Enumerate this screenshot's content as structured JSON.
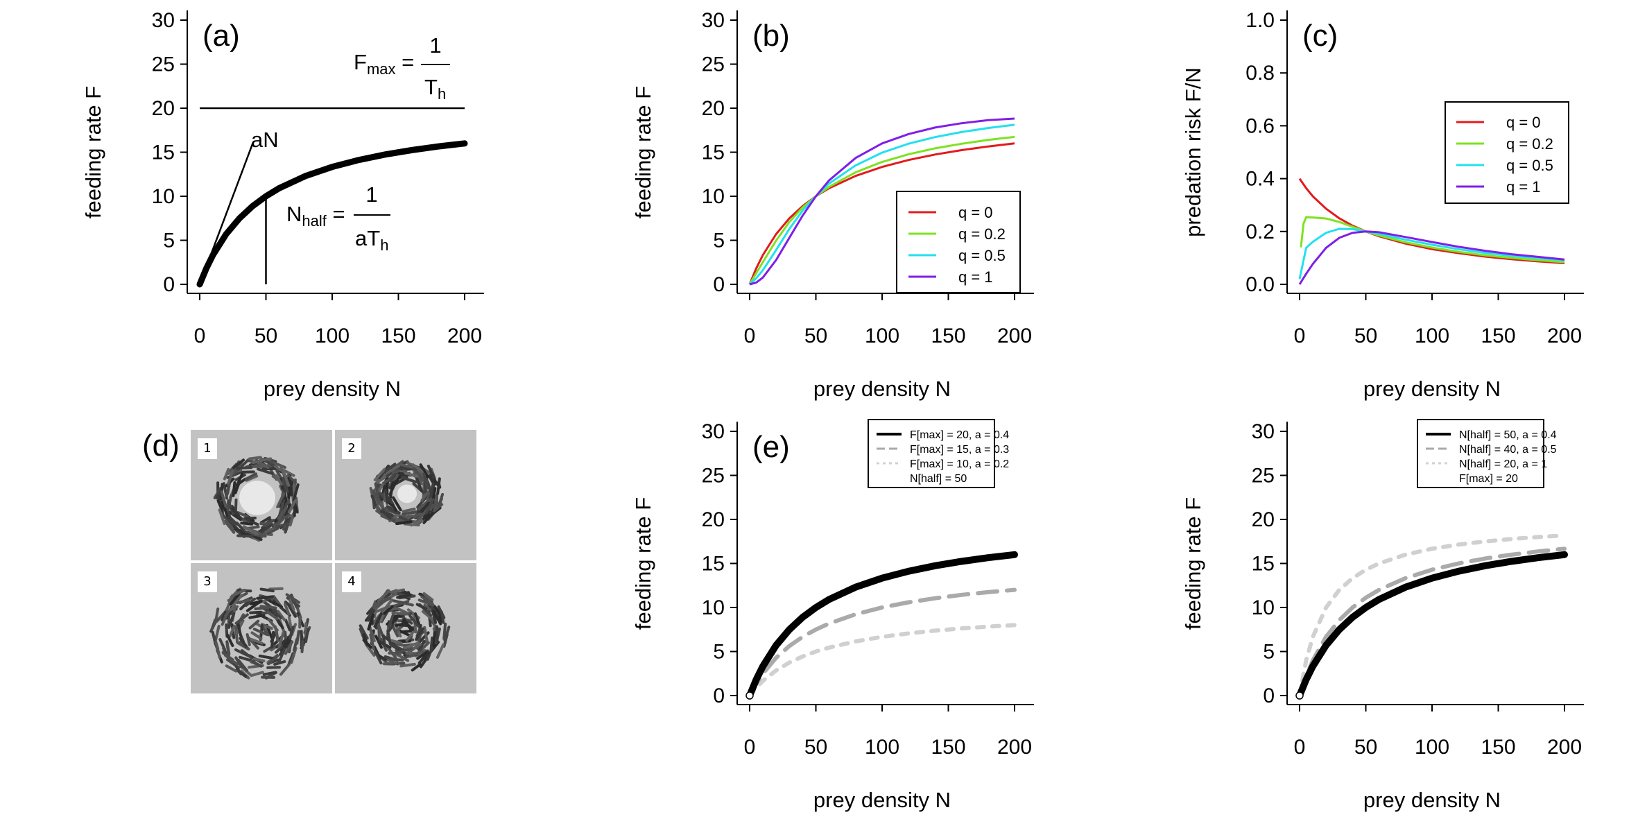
{
  "chart_data": [
    {
      "type": "line",
      "panel_label": "(a)",
      "xlabel": "prey density N",
      "ylabel": "feeding rate F",
      "xlim": [
        0,
        200
      ],
      "ylim": [
        0,
        30
      ],
      "xticks": [
        "0",
        "50",
        "100",
        "150",
        "200"
      ],
      "yticks": [
        "0",
        "5",
        "10",
        "15",
        "20",
        "25",
        "30"
      ],
      "series": [
        {
          "x": [
            0,
            5,
            10,
            20,
            30,
            40,
            50,
            60,
            80,
            100,
            120,
            140,
            160,
            180,
            200
          ],
          "y": [
            0,
            1.82,
            3.33,
            5.71,
            7.5,
            8.89,
            10.0,
            10.91,
            12.31,
            13.33,
            14.12,
            14.74,
            15.24,
            15.65,
            16.0
          ]
        }
      ],
      "annotations": [
        {
          "text": "aN",
          "line_x": [
            0,
            40
          ],
          "line_y": [
            0,
            16
          ]
        },
        {
          "text": "Fmax = 1/Th",
          "line_x": [
            0,
            200
          ],
          "line_y": [
            20,
            20
          ]
        },
        {
          "text": "Nhalf = 1/aTh",
          "line_x": [
            50,
            50
          ],
          "line_y": [
            0,
            10
          ]
        }
      ],
      "labels": {
        "fmax_main": "F",
        "fmax_sub": "max",
        "fmax_num": "1",
        "fmax_den_main": "T",
        "fmax_den_sub": "h",
        "nhalf_main": "N",
        "nhalf_sub": "half",
        "nhalf_num": "1",
        "nhalf_den_main": "aT",
        "nhalf_den_sub": "h",
        "eq": "=",
        "an": "aN"
      }
    },
    {
      "type": "line",
      "panel_label": "(b)",
      "xlabel": "prey density N",
      "ylabel": "feeding rate F",
      "xlim": [
        0,
        200
      ],
      "ylim": [
        0,
        30
      ],
      "xticks": [
        "0",
        "50",
        "100",
        "150",
        "200"
      ],
      "yticks": [
        "0",
        "5",
        "10",
        "15",
        "20",
        "25",
        "30"
      ],
      "x": [
        0,
        5,
        10,
        20,
        30,
        40,
        50,
        60,
        80,
        100,
        120,
        140,
        160,
        180,
        200
      ],
      "series": [
        {
          "name": "q = 0",
          "color": "#e31a1c",
          "y": [
            0,
            1.82,
            3.33,
            5.71,
            7.5,
            8.89,
            10.0,
            10.91,
            12.31,
            13.33,
            14.12,
            14.74,
            15.24,
            15.65,
            16.0
          ]
        },
        {
          "name": "q = 0.2",
          "color": "#7de321",
          "y": [
            0,
            1.27,
            2.53,
            4.98,
            7.08,
            8.73,
            10.0,
            11.07,
            12.72,
            13.9,
            14.77,
            15.44,
            15.96,
            16.39,
            16.74
          ]
        },
        {
          "name": "q = 0.5",
          "color": "#22e0f0",
          "y": [
            0,
            0.69,
            1.61,
            3.9,
            6.29,
            8.37,
            10.0,
            11.45,
            13.5,
            14.95,
            15.97,
            16.72,
            17.29,
            17.75,
            18.12
          ]
        },
        {
          "name": "q = 1",
          "color": "#7f1fe6",
          "y": [
            0,
            0.2,
            0.77,
            2.76,
            5.29,
            7.8,
            10.0,
            11.8,
            14.35,
            16.0,
            17.06,
            17.8,
            18.29,
            18.64,
            18.82
          ]
        }
      ],
      "legend_position": "bottom-right"
    },
    {
      "type": "line",
      "panel_label": "(c)",
      "xlabel": "prey density N",
      "ylabel": "predation risk F/N",
      "xlim": [
        0,
        200
      ],
      "ylim": [
        0,
        1
      ],
      "xticks": [
        "0",
        "50",
        "100",
        "150",
        "200"
      ],
      "yticks": [
        "0.0",
        "0.2",
        "0.4",
        "0.6",
        "0.8",
        "1.0"
      ],
      "series": [
        {
          "name": "q = 0",
          "color": "#e31a1c",
          "x": [
            0,
            5,
            10,
            20,
            30,
            40,
            50,
            60,
            80,
            100,
            120,
            140,
            160,
            180,
            200
          ],
          "y": [
            0.4,
            0.364,
            0.333,
            0.286,
            0.25,
            0.222,
            0.2,
            0.182,
            0.154,
            0.133,
            0.118,
            0.105,
            0.095,
            0.087,
            0.08
          ]
        },
        {
          "name": "q = 0.2",
          "color": "#7de321",
          "x": [
            1,
            3,
            5,
            10,
            20,
            30,
            40,
            50,
            60,
            80,
            100,
            120,
            140,
            160,
            180,
            200
          ],
          "y": [
            0.14,
            0.23,
            0.254,
            0.253,
            0.249,
            0.236,
            0.218,
            0.2,
            0.185,
            0.159,
            0.139,
            0.123,
            0.11,
            0.1,
            0.091,
            0.084
          ]
        },
        {
          "name": "q = 0.5",
          "color": "#22e0f0",
          "x": [
            0,
            5,
            10,
            20,
            30,
            40,
            50,
            60,
            80,
            100,
            120,
            140,
            160,
            180,
            200
          ],
          "y": [
            0.02,
            0.138,
            0.161,
            0.195,
            0.21,
            0.209,
            0.2,
            0.191,
            0.169,
            0.15,
            0.133,
            0.119,
            0.108,
            0.099,
            0.091
          ]
        },
        {
          "name": "q = 1",
          "color": "#7f1fe6",
          "x": [
            0,
            5,
            10,
            20,
            30,
            40,
            50,
            60,
            80,
            100,
            120,
            140,
            160,
            180,
            200
          ],
          "y": [
            0.0,
            0.04,
            0.077,
            0.138,
            0.176,
            0.195,
            0.2,
            0.197,
            0.179,
            0.16,
            0.142,
            0.127,
            0.114,
            0.104,
            0.094
          ]
        }
      ],
      "legend_position": "top-right"
    },
    {
      "type": "image",
      "panel_label": "(d)",
      "tiles": [
        "1",
        "2",
        "3",
        "4"
      ]
    },
    {
      "type": "line",
      "panel_label": "(e)",
      "xlabel": "prey density N",
      "ylabel": "feeding rate F",
      "xlim": [
        0,
        200
      ],
      "ylim": [
        0,
        30
      ],
      "xticks": [
        "0",
        "50",
        "100",
        "150",
        "200"
      ],
      "yticks": [
        "0",
        "5",
        "10",
        "15",
        "20",
        "25",
        "30"
      ],
      "x": [
        0,
        5,
        10,
        20,
        30,
        40,
        50,
        60,
        80,
        100,
        120,
        140,
        160,
        180,
        200
      ],
      "series": [
        {
          "name": "F[max] = 20, a = 0.4",
          "color": "#000000",
          "style": "solid",
          "y": [
            0,
            1.82,
            3.33,
            5.71,
            7.5,
            8.89,
            10.0,
            10.91,
            12.31,
            13.33,
            14.12,
            14.74,
            15.24,
            15.65,
            16.0
          ]
        },
        {
          "name": "F[max] = 15, a = 0.3",
          "color": "#aaaaaa",
          "style": "dashed",
          "y": [
            0,
            1.36,
            2.5,
            4.29,
            5.63,
            6.67,
            7.5,
            8.18,
            9.23,
            10.0,
            10.59,
            11.05,
            11.43,
            11.74,
            12.0
          ]
        },
        {
          "name": "F[max] = 10, a = 0.2",
          "color": "#d0d0d0",
          "style": "dotted",
          "y": [
            0,
            0.91,
            1.67,
            2.86,
            3.75,
            4.44,
            5.0,
            5.45,
            6.15,
            6.67,
            7.06,
            7.37,
            7.62,
            7.83,
            8.0
          ]
        }
      ],
      "legend_extra": "N[half] = 50",
      "legend_position": "top-right"
    },
    {
      "type": "line",
      "panel_label": "",
      "xlabel": "prey density N",
      "ylabel": "feeding rate F",
      "xlim": [
        0,
        200
      ],
      "ylim": [
        0,
        30
      ],
      "xticks": [
        "0",
        "50",
        "100",
        "150",
        "200"
      ],
      "yticks": [
        "0",
        "5",
        "10",
        "15",
        "20",
        "25",
        "30"
      ],
      "x": [
        0,
        5,
        10,
        20,
        30,
        40,
        50,
        60,
        80,
        100,
        120,
        140,
        160,
        180,
        200
      ],
      "series": [
        {
          "name": "N[half] = 50, a = 0.4",
          "color": "#000000",
          "style": "solid",
          "y": [
            0,
            1.82,
            3.33,
            5.71,
            7.5,
            8.89,
            10.0,
            10.91,
            12.31,
            13.33,
            14.12,
            14.74,
            15.24,
            15.65,
            16.0
          ]
        },
        {
          "name": "N[half] = 40, a = 0.5",
          "color": "#aaaaaa",
          "style": "dashed",
          "y": [
            0,
            2.22,
            4.0,
            6.67,
            8.57,
            10.0,
            11.11,
            12.0,
            13.33,
            14.29,
            15.0,
            15.56,
            16.0,
            16.36,
            16.67
          ]
        },
        {
          "name": "N[half] = 20, a = 1",
          "color": "#d0d0d0",
          "style": "dotted",
          "y": [
            0,
            4.0,
            6.67,
            10.0,
            12.0,
            13.33,
            14.29,
            15.0,
            16.0,
            16.67,
            17.14,
            17.5,
            17.78,
            18.0,
            18.18
          ]
        }
      ],
      "legend_extra": "F[max] = 20",
      "legend_position": "top-right"
    }
  ]
}
